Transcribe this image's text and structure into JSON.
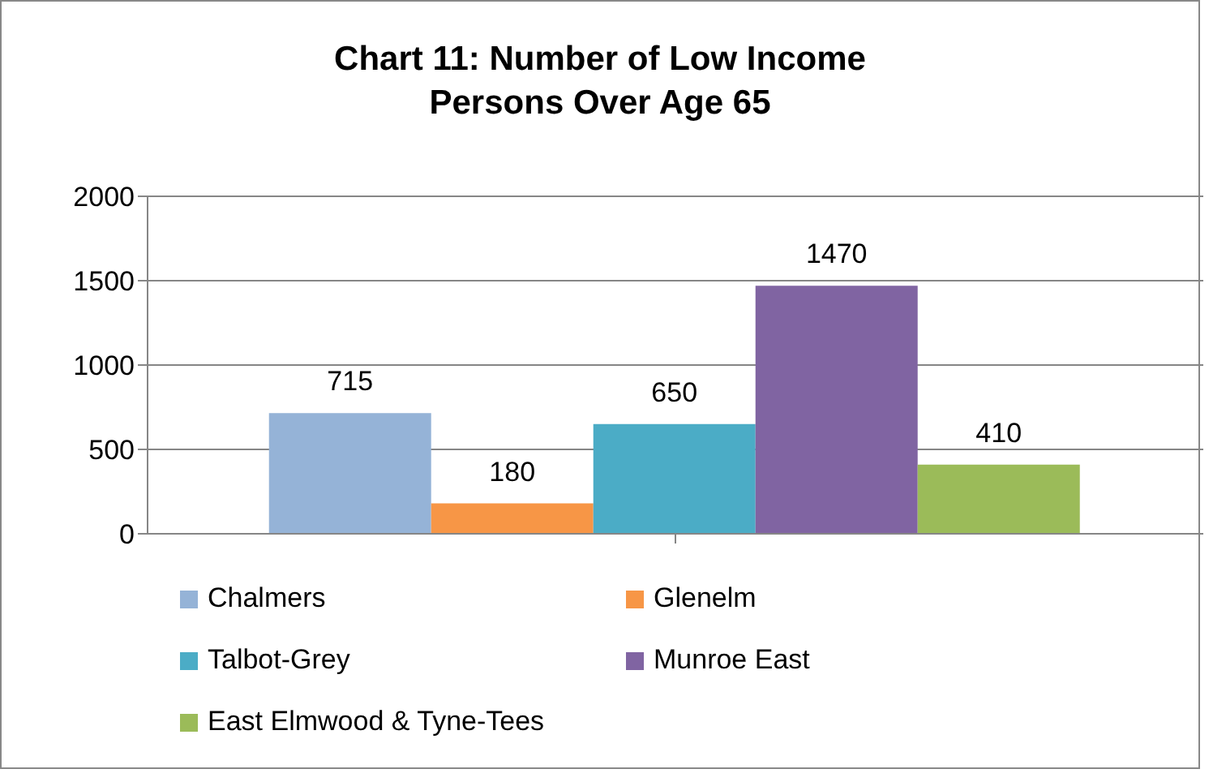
{
  "chart_data": {
    "type": "bar",
    "title": "Chart 11: Number of Low Income Persons Over Age 65",
    "categories": [
      null
    ],
    "series": [
      {
        "name": "Chalmers",
        "color": "#95b3d7",
        "values": [
          715
        ]
      },
      {
        "name": "Glenelm",
        "color": "#f79646",
        "values": [
          180
        ]
      },
      {
        "name": "Talbot-Grey",
        "color": "#4bacc6",
        "values": [
          650
        ]
      },
      {
        "name": "Munroe East",
        "color": "#8064a2",
        "values": [
          1470
        ]
      },
      {
        "name": "East Elmwood & Tyne-Tees",
        "color": "#9bbb59",
        "values": [
          410
        ]
      }
    ],
    "ylim": [
      0,
      2000
    ],
    "yticks": [
      0,
      500,
      1000,
      1500,
      2000
    ],
    "grid": "y",
    "legend": "bottom",
    "data_labels": true
  }
}
